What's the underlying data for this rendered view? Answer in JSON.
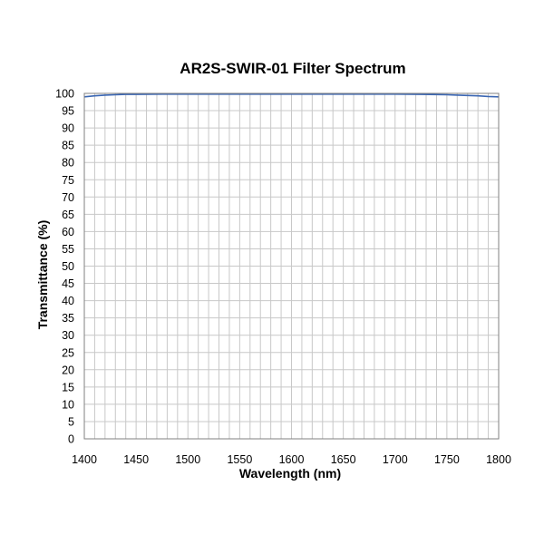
{
  "chart_data": {
    "type": "line",
    "title": "AR2S-SWIR-01 Filter Spectrum",
    "xlabel": "Wavelength (nm)",
    "ylabel": "Transmittance (%)",
    "xlim": [
      1400,
      1800
    ],
    "ylim": [
      0,
      100
    ],
    "x_ticks": [
      1400,
      1450,
      1500,
      1550,
      1600,
      1650,
      1700,
      1750,
      1800
    ],
    "y_ticks": [
      0,
      5,
      10,
      15,
      20,
      25,
      30,
      35,
      40,
      45,
      50,
      55,
      60,
      65,
      70,
      75,
      80,
      85,
      90,
      95,
      100
    ],
    "grid": true,
    "series": [
      {
        "color": "#3a66b3",
        "x": [
          1400,
          1410,
          1420,
          1430,
          1440,
          1450,
          1475,
          1500,
          1550,
          1600,
          1650,
          1700,
          1725,
          1750,
          1760,
          1770,
          1780,
          1790,
          1800
        ],
        "y": [
          99.0,
          99.3,
          99.5,
          99.6,
          99.7,
          99.7,
          99.8,
          99.8,
          99.8,
          99.8,
          99.8,
          99.8,
          99.7,
          99.6,
          99.5,
          99.4,
          99.3,
          99.1,
          99.0
        ]
      }
    ]
  }
}
